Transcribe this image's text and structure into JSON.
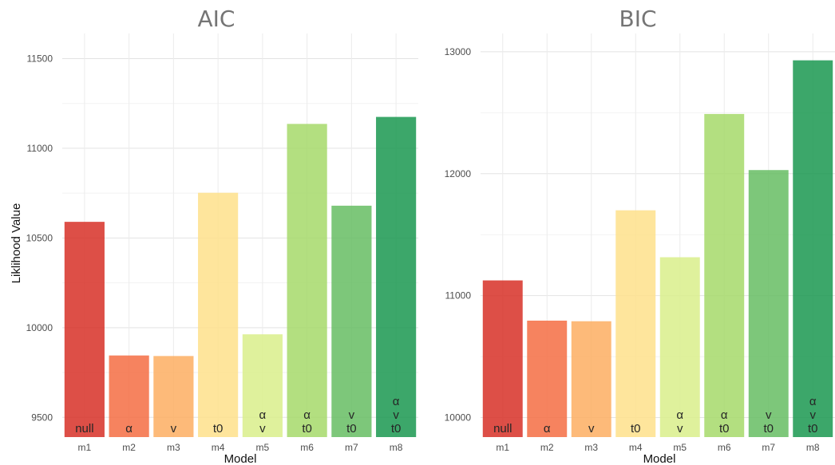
{
  "chart_data": [
    {
      "type": "bar",
      "title": "AIC",
      "xlabel": "Model",
      "ylabel": "Liklihood Value",
      "categories": [
        "m1",
        "m2",
        "m3",
        "m4",
        "m5",
        "m6",
        "m7",
        "m8"
      ],
      "values": [
        10590,
        9845,
        9842,
        10752,
        9963,
        11136,
        10680,
        11175
      ],
      "bar_labels": [
        [
          "null"
        ],
        [
          "α"
        ],
        [
          "v"
        ],
        [
          "t0"
        ],
        [
          "α",
          "v"
        ],
        [
          "α",
          "t0"
        ],
        [
          "v",
          "t0"
        ],
        [
          "α",
          "v",
          "t0"
        ]
      ],
      "ylim": [
        9390,
        11640
      ],
      "yticks": [
        9500,
        10000,
        10500,
        11000,
        11500
      ],
      "grid": true,
      "legend": "none",
      "colors": [
        "#d73027",
        "#f46d43",
        "#fdae61",
        "#fee08b",
        "#d9ef8b",
        "#a6d96a",
        "#66bd63",
        "#1a9850"
      ]
    },
    {
      "type": "bar",
      "title": "BIC",
      "xlabel": "Model",
      "ylabel": "",
      "categories": [
        "m1",
        "m2",
        "m3",
        "m4",
        "m5",
        "m6",
        "m7",
        "m8"
      ],
      "values": [
        11125,
        10795,
        10790,
        11700,
        11315,
        12490,
        12030,
        12930
      ],
      "bar_labels": [
        [
          "null"
        ],
        [
          "α"
        ],
        [
          "v"
        ],
        [
          "t0"
        ],
        [
          "α",
          "v"
        ],
        [
          "α",
          "t0"
        ],
        [
          "v",
          "t0"
        ],
        [
          "α",
          "v",
          "t0"
        ]
      ],
      "ylim": [
        9840,
        13150
      ],
      "yticks": [
        10000,
        11000,
        12000,
        13000
      ],
      "grid": true,
      "legend": "none",
      "colors": [
        "#d73027",
        "#f46d43",
        "#fdae61",
        "#fee08b",
        "#d9ef8b",
        "#a6d96a",
        "#66bd63",
        "#1a9850"
      ]
    }
  ]
}
